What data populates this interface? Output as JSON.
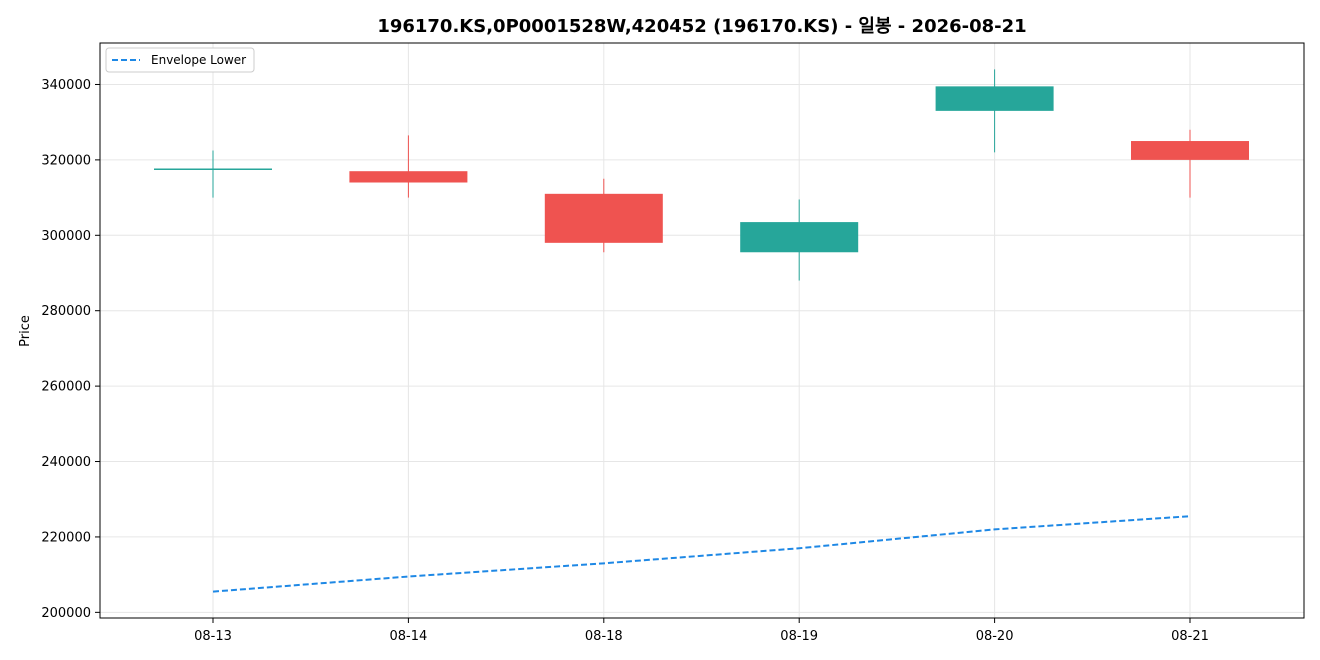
{
  "chart_data": {
    "type": "candlestick",
    "title": "196170.KS,0P0001528W,420452 (196170.KS) - 일봉 - 2026-08-21",
    "xlabel": "",
    "ylabel": "Price",
    "categories": [
      "08-13",
      "08-14",
      "08-18",
      "08-19",
      "08-20",
      "08-21"
    ],
    "ohlc": [
      {
        "open": 317500,
        "high": 322500,
        "low": 310000,
        "close": 317500
      },
      {
        "open": 317000,
        "high": 326500,
        "low": 310000,
        "close": 314000
      },
      {
        "open": 311000,
        "high": 315000,
        "low": 295500,
        "close": 298000
      },
      {
        "open": 295500,
        "high": 309500,
        "low": 288000,
        "close": 303500
      },
      {
        "open": 333000,
        "high": 344000,
        "low": 322000,
        "close": 339500
      },
      {
        "open": 325000,
        "high": 328000,
        "low": 310000,
        "close": 320000
      }
    ],
    "series": [
      {
        "name": "Envelope Lower",
        "values": [
          205500,
          209500,
          213000,
          217000,
          222000,
          225500
        ]
      }
    ],
    "ylim": [
      198500,
      351000
    ],
    "yticks": [
      200000,
      220000,
      240000,
      260000,
      280000,
      300000,
      320000,
      340000
    ],
    "ytick_labels": [
      "200000",
      "220000",
      "240000",
      "260000",
      "280000",
      "300000",
      "320000",
      "340000"
    ],
    "grid": true,
    "legend_position": "top-left",
    "colors": {
      "up": "#26a69a",
      "down": "#ef5350",
      "envelope": "#1e88e5",
      "grid": "#e6e6e6"
    }
  }
}
